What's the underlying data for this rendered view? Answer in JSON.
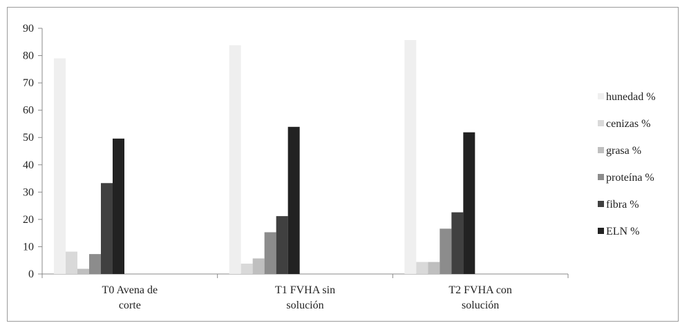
{
  "chart_data": {
    "type": "bar",
    "categories": [
      [
        "T0 Avena de",
        "corte"
      ],
      [
        "T1 FVHA sin",
        "solución"
      ],
      [
        "T2 FVHA con",
        "solución"
      ]
    ],
    "series": [
      {
        "name": "hunedad %",
        "color": "#efefef",
        "values": [
          79,
          83.8,
          85.7
        ]
      },
      {
        "name": "cenizas %",
        "color": "#d9d9d9",
        "values": [
          8.2,
          3.8,
          4.4
        ]
      },
      {
        "name": "grasa %",
        "color": "#bfbfbf",
        "values": [
          1.9,
          5.7,
          4.4
        ]
      },
      {
        "name": "proteína %",
        "color": "#8c8c8c",
        "values": [
          7.3,
          15.3,
          16.6
        ]
      },
      {
        "name": "fibra %",
        "color": "#404040",
        "values": [
          33.3,
          21.2,
          22.6
        ]
      },
      {
        "name": "ELN %",
        "color": "#222222",
        "values": [
          49.6,
          53.9,
          51.9
        ]
      }
    ],
    "ylim": [
      0,
      90
    ],
    "yticks": [
      0,
      10,
      20,
      30,
      40,
      50,
      60,
      70,
      80,
      90
    ],
    "grid": false,
    "legend": "right"
  }
}
